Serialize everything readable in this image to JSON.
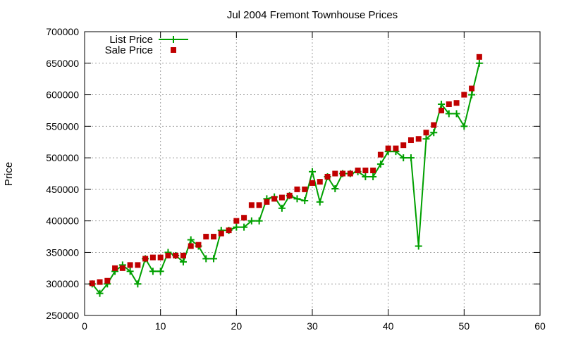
{
  "chart_data": {
    "type": "line",
    "title": "Jul 2004 Fremont Townhouse Prices",
    "xlabel": "",
    "ylabel": "Price",
    "xlim": [
      0,
      60
    ],
    "ylim": [
      250000,
      700000
    ],
    "x_ticks": [
      0,
      10,
      20,
      30,
      40,
      50,
      60
    ],
    "y_ticks": [
      250000,
      300000,
      350000,
      400000,
      450000,
      500000,
      550000,
      600000,
      650000,
      700000
    ],
    "x_tick_labels": [
      "0",
      "10",
      "20",
      "30",
      "40",
      "50",
      "60"
    ],
    "y_tick_labels": [
      "250000",
      "300000",
      "350000",
      "400000",
      "450000",
      "500000",
      "550000",
      "600000",
      "650000",
      "700000"
    ],
    "grid": true,
    "legend_position": "top-left",
    "series": [
      {
        "name": "List Price",
        "style": "line-with-plus-markers",
        "color": "#00a000",
        "x": [
          1,
          2,
          3,
          4,
          5,
          6,
          7,
          8,
          9,
          10,
          11,
          12,
          13,
          14,
          15,
          16,
          17,
          18,
          19,
          20,
          21,
          22,
          23,
          24,
          25,
          26,
          27,
          28,
          29,
          30,
          31,
          32,
          33,
          34,
          35,
          36,
          37,
          38,
          39,
          40,
          41,
          42,
          43,
          44,
          45,
          46,
          47,
          48,
          49,
          50,
          51,
          52
        ],
        "y": [
          300000,
          285000,
          300000,
          320000,
          330000,
          320000,
          300000,
          340000,
          320000,
          320000,
          350000,
          345000,
          335000,
          370000,
          360000,
          340000,
          340000,
          385000,
          385000,
          390000,
          390000,
          400000,
          400000,
          435000,
          438000,
          420000,
          440000,
          435000,
          432000,
          478000,
          430000,
          470000,
          451000,
          475000,
          475000,
          478000,
          470000,
          470000,
          490000,
          510000,
          510000,
          500000,
          500000,
          360000,
          530000,
          540000,
          585000,
          570000,
          570000,
          550000,
          600000,
          650000
        ]
      },
      {
        "name": "Sale Price",
        "style": "square-markers",
        "color": "#c00000",
        "x": [
          1,
          2,
          3,
          4,
          5,
          6,
          7,
          8,
          9,
          10,
          11,
          12,
          13,
          14,
          15,
          16,
          17,
          18,
          19,
          20,
          21,
          22,
          23,
          24,
          25,
          26,
          27,
          28,
          29,
          30,
          31,
          32,
          33,
          34,
          35,
          36,
          37,
          38,
          39,
          40,
          41,
          42,
          43,
          44,
          45,
          46,
          47,
          48,
          49,
          50,
          51,
          52
        ],
        "y": [
          301000,
          303000,
          305000,
          325000,
          325000,
          330000,
          330000,
          340000,
          342000,
          342000,
          345000,
          345000,
          345000,
          360000,
          362000,
          375000,
          375000,
          380000,
          385000,
          400000,
          405000,
          425000,
          425000,
          430000,
          435000,
          437000,
          440000,
          450000,
          450000,
          460000,
          462000,
          470000,
          475000,
          475000,
          475000,
          480000,
          480000,
          480000,
          505000,
          515000,
          515000,
          520000,
          528000,
          530000,
          540000,
          552000,
          575000,
          585000,
          587000,
          600000,
          610000,
          660000
        ]
      }
    ]
  }
}
